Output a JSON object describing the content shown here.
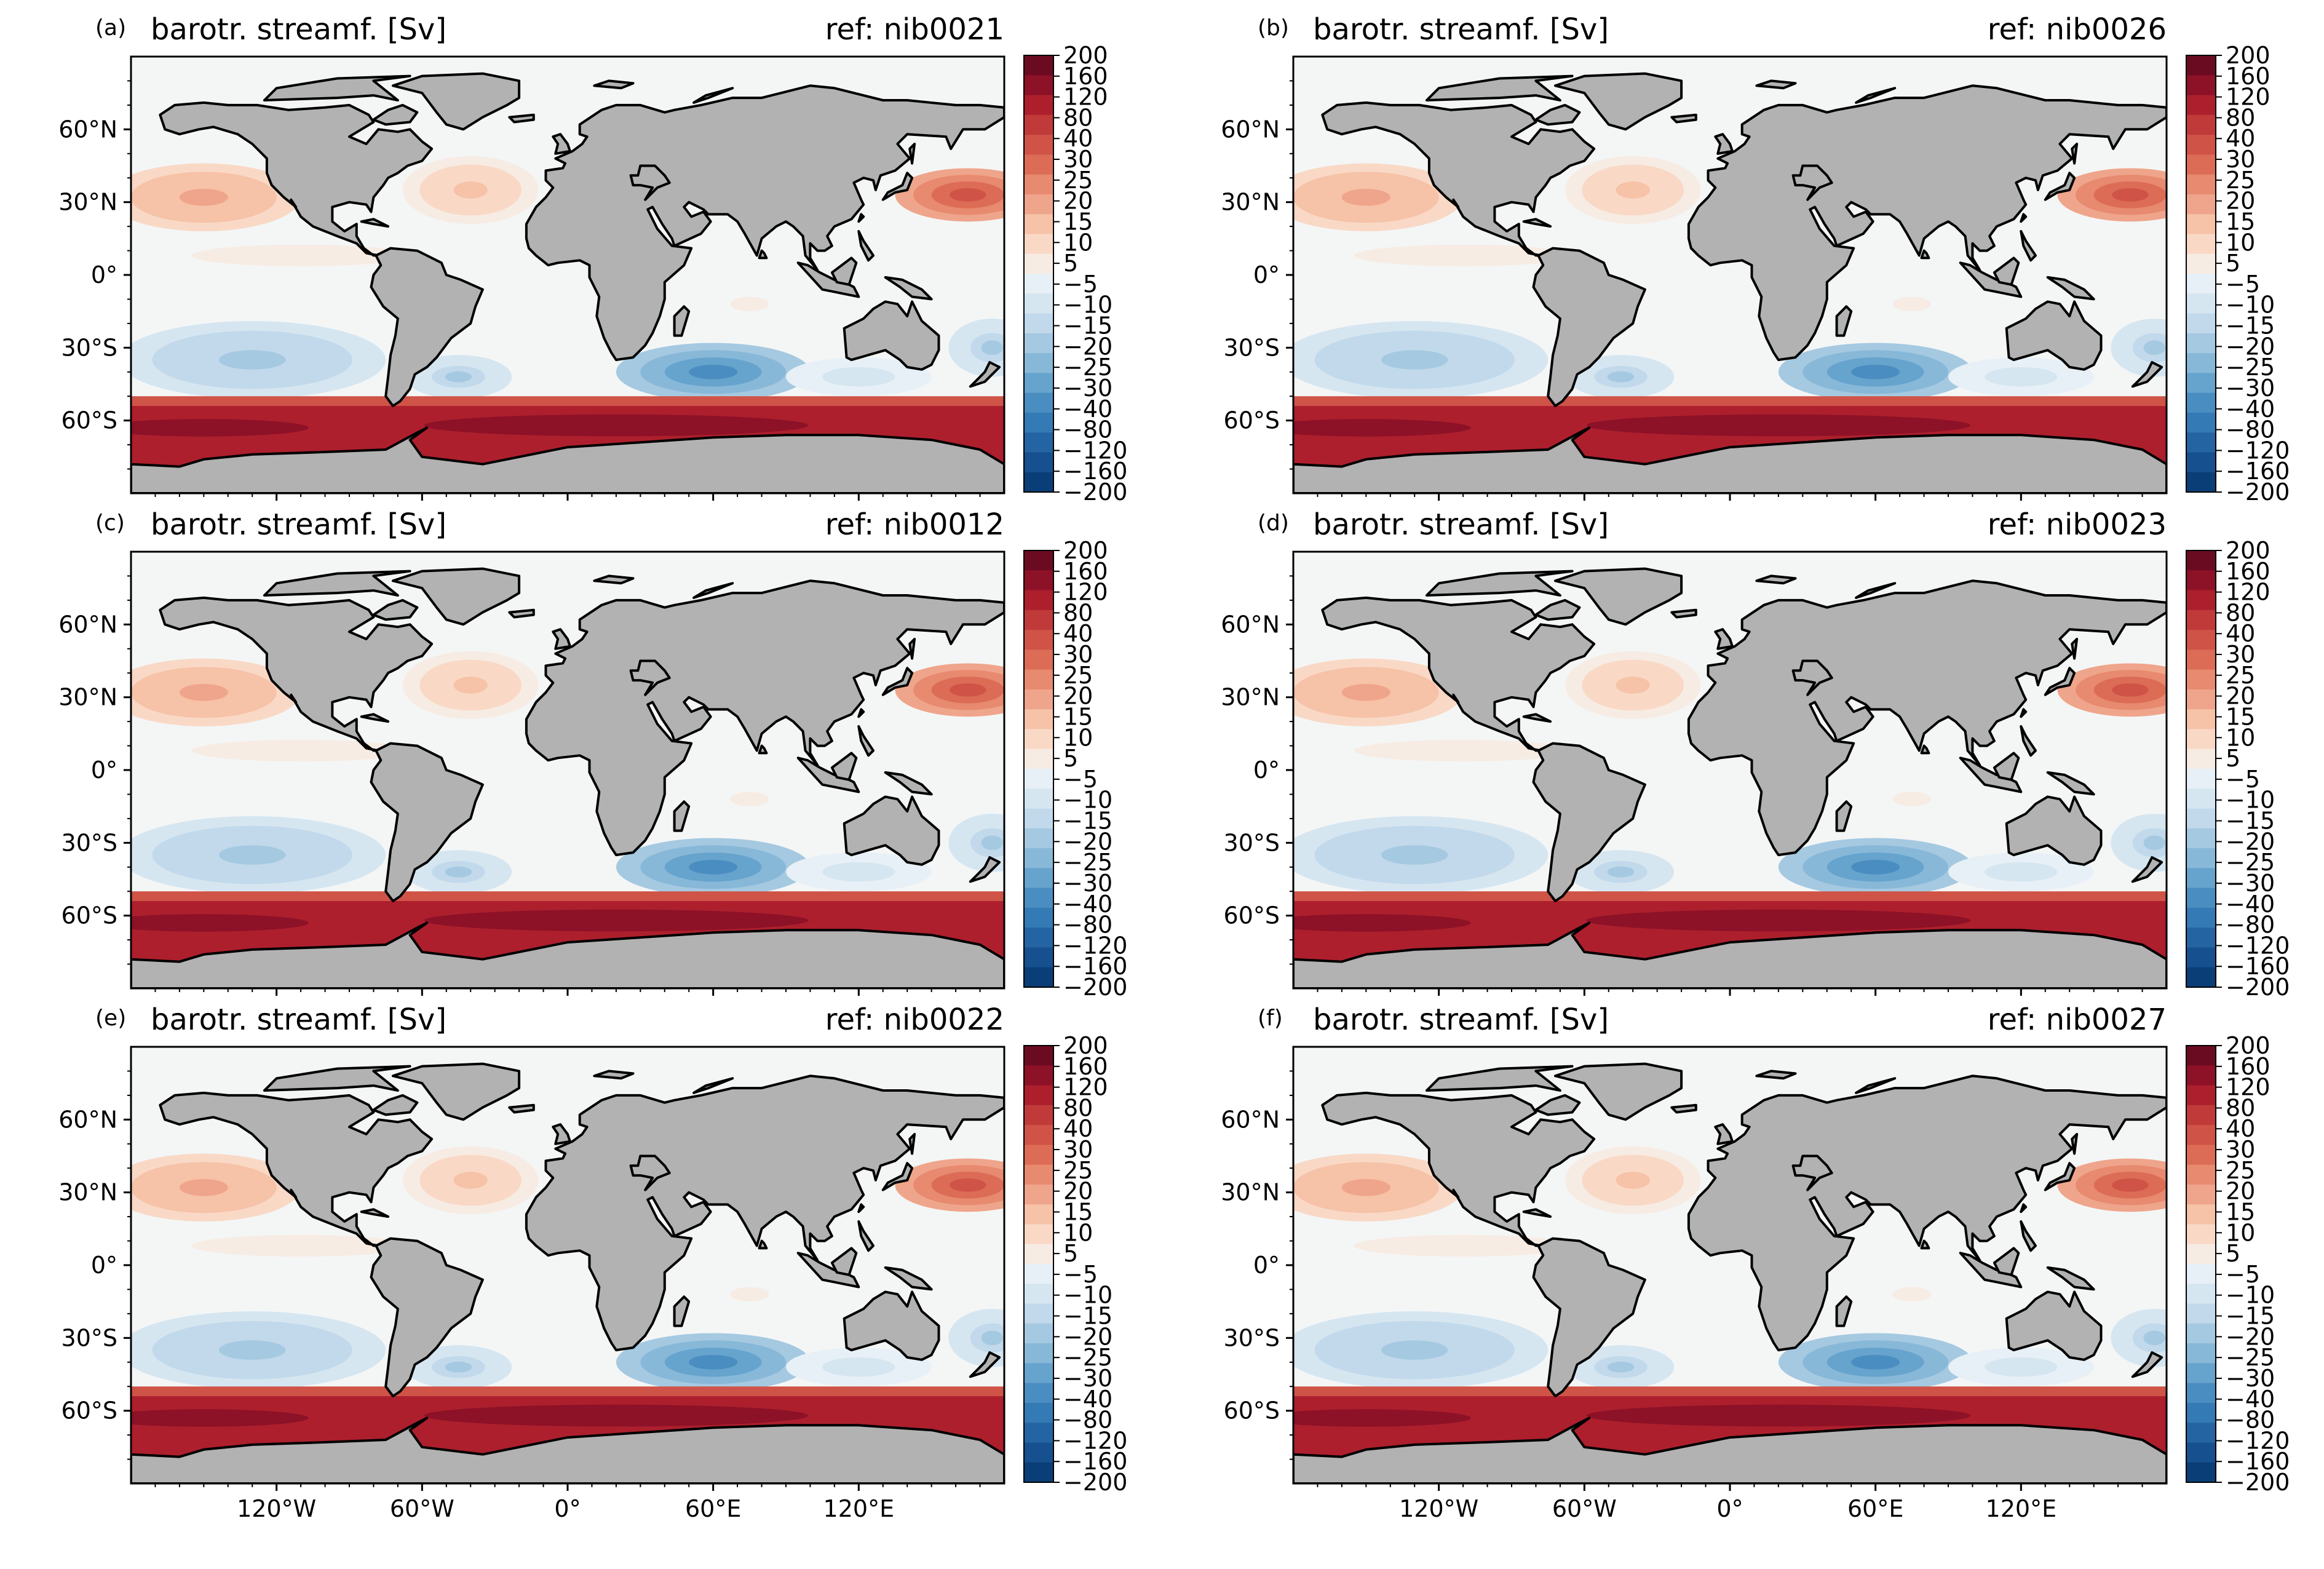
{
  "colors": {
    "land": "#b2b2b2",
    "ocean_neutral": "#f4f6f6",
    "coast": "#000000",
    "scale_positive_low": "#fbe5d8",
    "scale_positive_high": "#67001f",
    "scale_negative_low": "#e3eef5",
    "scale_negative_high": "#053061"
  },
  "colorbar": {
    "labels": [
      "200",
      "160",
      "120",
      "80",
      "40",
      "30",
      "25",
      "20",
      "15",
      "10",
      "5",
      "−5",
      "−10",
      "−15",
      "−20",
      "−25",
      "−30",
      "−40",
      "−80",
      "−120",
      "−160",
      "−200"
    ],
    "colors": [
      "#6b0b22",
      "#8d1127",
      "#ad1f2d",
      "#c03a3a",
      "#cf5347",
      "#dc6c55",
      "#e78a6f",
      "#efa58b",
      "#f6c2a8",
      "#f9d9c6",
      "#f7ece4",
      "#e7f0f6",
      "#d6e6f1",
      "#c1d9eb",
      "#a5c9e1",
      "#88b8d8",
      "#66a3cd",
      "#4a8dc0",
      "#347ab4",
      "#2564a2",
      "#16508e",
      "#0a3e76"
    ]
  },
  "lat_labels": [
    "60°N",
    "30°N",
    "0°",
    "30°S",
    "60°S"
  ],
  "lon_labels": [
    "120°W",
    "60°W",
    "0°",
    "60°E",
    "120°E"
  ],
  "panels": [
    {
      "label": "(a)",
      "title": "barotr. streamf. [Sv]",
      "ref": "ref: nib0021"
    },
    {
      "label": "(b)",
      "title": "barotr. streamf. [Sv]",
      "ref": "ref: nib0026"
    },
    {
      "label": "(c)",
      "title": "barotr. streamf. [Sv]",
      "ref": "ref: nib0012"
    },
    {
      "label": "(d)",
      "title": "barotr. streamf. [Sv]",
      "ref": "ref: nib0023"
    },
    {
      "label": "(e)",
      "title": "barotr. streamf. [Sv]",
      "ref": "ref: nib0022"
    },
    {
      "label": "(f)",
      "title": "barotr. streamf. [Sv]",
      "ref": "ref: nib0027"
    }
  ]
}
